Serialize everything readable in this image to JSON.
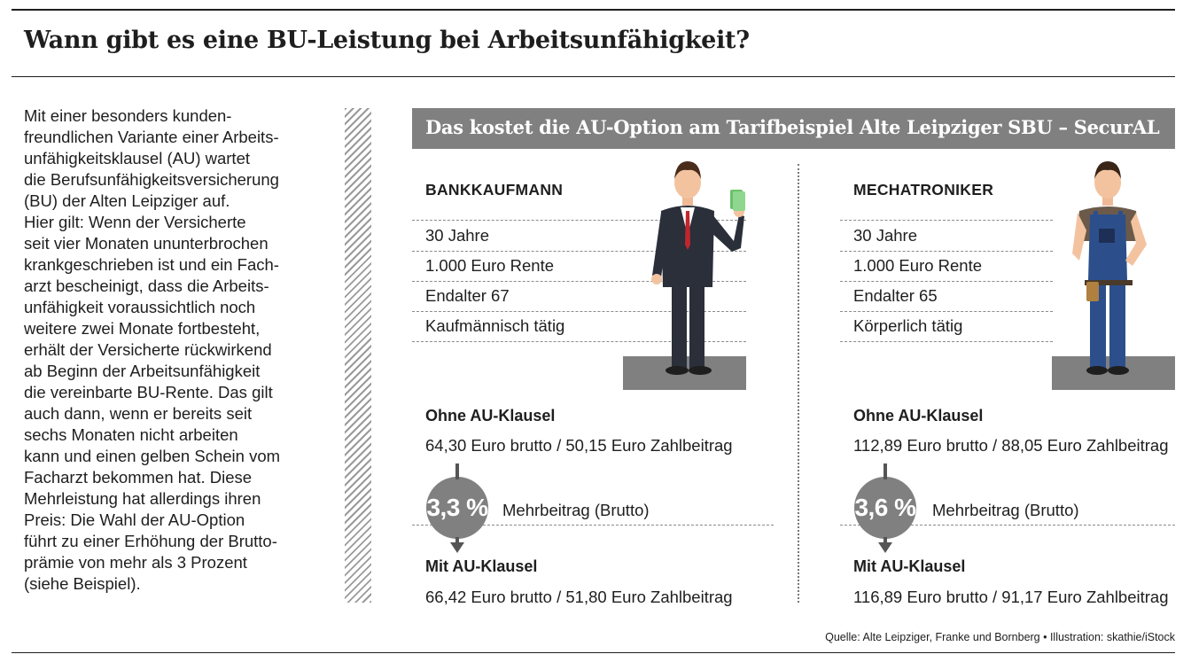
{
  "headline": "Wann gibt es eine BU-Leistung bei Arbeitsunfähigkeit?",
  "intro_lines": [
    "Mit einer besonders kunden-",
    "freundlichen Variante einer Arbeits-",
    "unfähigkeitsklausel (AU) wartet",
    "die Berufsunfähigkeitsversicherung",
    "(BU) der Alten Leipziger auf.",
    "Hier gilt: Wenn der Versicherte",
    "seit vier Monaten ununterbrochen",
    "krankgeschrieben ist und ein Fach-",
    "arzt bescheinigt, dass die Arbeits-",
    "unfähigkeit voraussichtlich noch",
    "weitere zwei Monate fortbesteht,",
    "erhält der Versicherte rückwirkend",
    "ab Beginn der Arbeitsunfähigkeit",
    "die vereinbarte BU-Rente. Das gilt",
    "auch dann, wenn er bereits seit",
    "sechs Monaten nicht arbeiten",
    "kann und einen gelben Schein vom",
    "Facharzt bekommen hat. Diese",
    "Mehrleistung hat allerdings ihren",
    "Preis: Die Wahl der AU-Option",
    "führt zu einer Erhöhung der Brutto-",
    "prämie von mehr als 3 Prozent",
    "(siehe Beispiel)."
  ],
  "banner_title": "Das kostet die AU-Option am Tarifbeispiel Alte Leipziger SBU – SecurAL",
  "profiles": [
    {
      "name": "BANKKAUFMANN",
      "attributes": [
        "30 Jahre",
        "1.000 Euro Rente",
        "Endalter 67",
        "Kaufmännisch tätig"
      ],
      "without_label": "Ohne AU-Klausel",
      "without_value": "64,30 Euro brutto / 50,15 Euro Zahlbeitrag",
      "percent": "3,3 %",
      "surcharge_label": "Mehrbeitrag (Brutto)",
      "with_label": "Mit AU-Klausel",
      "with_value": "66,42 Euro brutto / 51,80 Euro Zahlbeitrag"
    },
    {
      "name": "MECHATRONIKER",
      "attributes": [
        "30 Jahre",
        "1.000 Euro Rente",
        "Endalter 65",
        "Körperlich tätig"
      ],
      "without_label": "Ohne AU-Klausel",
      "without_value": "112,89 Euro brutto / 88,05 Euro Zahlbeitrag",
      "percent": "3,6 %",
      "surcharge_label": "Mehrbeitrag (Brutto)",
      "with_label": "Mit AU-Klausel",
      "with_value": "116,89 Euro brutto / 91,17 Euro Zahlbeitrag"
    }
  ],
  "source": "Quelle: Alte Leipziger, Franke und Bornberg • Illustration: skathie/iStock",
  "colors": {
    "banner": "#808080",
    "circle": "#808080",
    "pedestal": "#808080",
    "text": "#1e1e1e"
  },
  "illustrations": [
    "businessman-figure",
    "mechanic-figure"
  ]
}
